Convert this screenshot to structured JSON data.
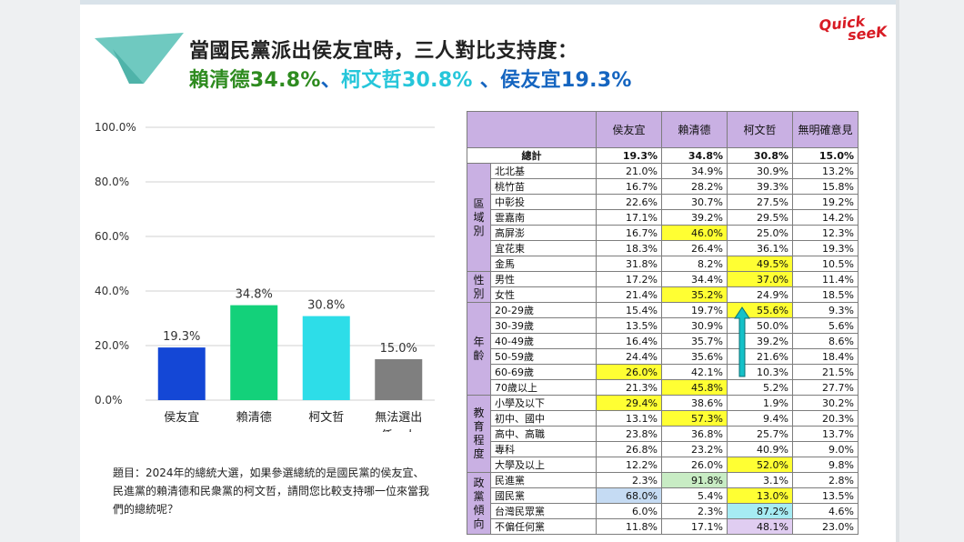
{
  "header": {
    "title_line1": "當國民黨派出侯友宜時，三人對比支持度：",
    "title_line2_parts": [
      {
        "text": "賴清德34.8%",
        "color": "#2e8b1f"
      },
      {
        "text": "、",
        "color": "#1565c0"
      },
      {
        "text": "柯文哲30.8%",
        "color": "#26c6da"
      },
      {
        "text": " 、侯友宜19.3%",
        "color": "#1565c0"
      }
    ]
  },
  "logo": {
    "line1": "Quick",
    "line2": "seeK",
    "color": "#d81b24"
  },
  "chart_data": {
    "type": "bar",
    "categories": [
      "侯友宜",
      "賴清德",
      "柯文哲",
      "無法選出任一人"
    ],
    "values": [
      19.3,
      34.8,
      30.8,
      15.0
    ],
    "value_labels": [
      "19.3%",
      "34.8%",
      "30.8%",
      "15.0%"
    ],
    "colors": [
      "#1447d6",
      "#13d17a",
      "#2ddde8",
      "#7f7f7f"
    ],
    "ylim": [
      0,
      100
    ],
    "yticks": [
      "0.0%",
      "20.0%",
      "40.0%",
      "60.0%",
      "80.0%",
      "100.0%"
    ],
    "grid": true,
    "title": "",
    "xlabel": "",
    "ylabel": ""
  },
  "question": "題目：2024年的總統大選，如果參選總統的是國民黨的侯友宜、民進黨的賴清德和民衆黨的柯文哲，請問您比較支持哪一位來當我們的總統呢？",
  "table": {
    "columns": [
      "侯友宜",
      "賴清德",
      "柯文哲",
      "無明確意見"
    ],
    "total": {
      "label": "總計",
      "values": [
        "19.3%",
        "34.8%",
        "30.8%",
        "15.0%"
      ]
    },
    "groups": [
      {
        "name": "區域別",
        "rows": [
          {
            "label": "北北基",
            "values": [
              "21.0%",
              "34.9%",
              "30.9%",
              "13.2%"
            ]
          },
          {
            "label": "桃竹苗",
            "values": [
              "16.7%",
              "28.2%",
              "39.3%",
              "15.8%"
            ]
          },
          {
            "label": "中彰投",
            "values": [
              "22.6%",
              "30.7%",
              "27.5%",
              "19.2%"
            ]
          },
          {
            "label": "雲嘉南",
            "values": [
              "17.1%",
              "39.2%",
              "29.5%",
              "14.2%"
            ]
          },
          {
            "label": "高屏澎",
            "values": [
              "16.7%",
              "46.0%",
              "25.0%",
              "12.3%"
            ]
          },
          {
            "label": "宜花東",
            "values": [
              "18.3%",
              "26.4%",
              "36.1%",
              "19.3%"
            ]
          },
          {
            "label": "金馬",
            "values": [
              "31.8%",
              "8.2%",
              "49.5%",
              "10.5%"
            ]
          }
        ]
      },
      {
        "name": "性別",
        "rows": [
          {
            "label": "男性",
            "values": [
              "17.2%",
              "34.4%",
              "37.0%",
              "11.4%"
            ]
          },
          {
            "label": "女性",
            "values": [
              "21.4%",
              "35.2%",
              "24.9%",
              "18.5%"
            ]
          }
        ]
      },
      {
        "name": "年齡",
        "rows": [
          {
            "label": "20-29歲",
            "values": [
              "15.4%",
              "19.7%",
              "55.6%",
              "9.3%"
            ]
          },
          {
            "label": "30-39歲",
            "values": [
              "13.5%",
              "30.9%",
              "50.0%",
              "5.6%"
            ]
          },
          {
            "label": "40-49歲",
            "values": [
              "16.4%",
              "35.7%",
              "39.2%",
              "8.6%"
            ]
          },
          {
            "label": "50-59歲",
            "values": [
              "24.4%",
              "35.6%",
              "21.6%",
              "18.4%"
            ]
          },
          {
            "label": "60-69歲",
            "values": [
              "26.0%",
              "42.1%",
              "10.3%",
              "21.5%"
            ]
          },
          {
            "label": "70歲以上",
            "values": [
              "21.3%",
              "45.8%",
              "5.2%",
              "27.7%"
            ]
          }
        ]
      },
      {
        "name": "教育程度",
        "rows": [
          {
            "label": "小學及以下",
            "values": [
              "29.4%",
              "38.6%",
              "1.9%",
              "30.2%"
            ]
          },
          {
            "label": "初中、國中",
            "values": [
              "13.1%",
              "57.3%",
              "9.4%",
              "20.3%"
            ]
          },
          {
            "label": "高中、高職",
            "values": [
              "23.8%",
              "36.8%",
              "25.7%",
              "13.7%"
            ]
          },
          {
            "label": "專科",
            "values": [
              "26.8%",
              "23.2%",
              "40.9%",
              "9.0%"
            ]
          },
          {
            "label": "大學及以上",
            "values": [
              "12.2%",
              "26.0%",
              "52.0%",
              "9.8%"
            ]
          }
        ]
      },
      {
        "name": "政黨傾向",
        "rows": [
          {
            "label": "民進黨",
            "values": [
              "2.3%",
              "91.8%",
              "3.1%",
              "2.8%"
            ]
          },
          {
            "label": "國民黨",
            "values": [
              "68.0%",
              "5.4%",
              "13.0%",
              "13.5%"
            ]
          },
          {
            "label": "台灣民眾黨",
            "values": [
              "6.0%",
              "2.3%",
              "87.2%",
              "4.6%"
            ]
          },
          {
            "label": "不偏任何黨",
            "values": [
              "11.8%",
              "17.1%",
              "48.1%",
              "23.0%"
            ]
          }
        ]
      }
    ],
    "highlights": [
      {
        "group": 0,
        "row": 4,
        "col": 1,
        "color": "#ffff33"
      },
      {
        "group": 0,
        "row": 6,
        "col": 2,
        "color": "#ffff33"
      },
      {
        "group": 1,
        "row": 0,
        "col": 2,
        "color": "#ffff33"
      },
      {
        "group": 1,
        "row": 1,
        "col": 1,
        "color": "#ffff33"
      },
      {
        "group": 2,
        "row": 0,
        "col": 2,
        "color": "#ffff33"
      },
      {
        "group": 2,
        "row": 4,
        "col": 0,
        "color": "#ffff33"
      },
      {
        "group": 2,
        "row": 5,
        "col": 1,
        "color": "#ffff33"
      },
      {
        "group": 3,
        "row": 0,
        "col": 0,
        "color": "#ffff33"
      },
      {
        "group": 3,
        "row": 1,
        "col": 1,
        "color": "#ffff33"
      },
      {
        "group": 3,
        "row": 4,
        "col": 2,
        "color": "#ffff33"
      },
      {
        "group": 4,
        "row": 0,
        "col": 1,
        "color": "#c8ecc4"
      },
      {
        "group": 4,
        "row": 1,
        "col": 0,
        "color": "#c5dbf3"
      },
      {
        "group": 4,
        "row": 1,
        "col": 2,
        "color": "#ffff33"
      },
      {
        "group": 4,
        "row": 2,
        "col": 2,
        "color": "#a6ecf3"
      },
      {
        "group": 4,
        "row": 3,
        "col": 2,
        "color": "#e0cdf1"
      }
    ],
    "arrow_color": "#15c1c8"
  }
}
